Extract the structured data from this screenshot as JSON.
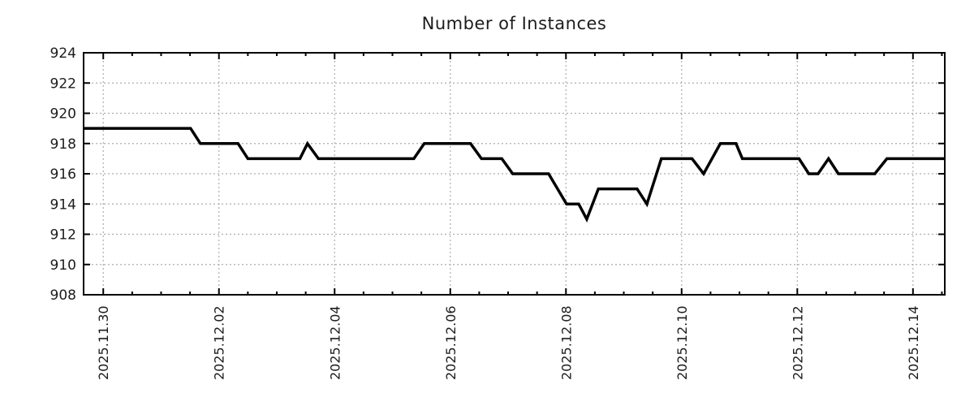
{
  "chart_data": {
    "type": "line",
    "title": "Number of Instances",
    "background": "#ffffff",
    "text_color": "#1c1c1c",
    "border_color": "#000000",
    "grid": {
      "show": true,
      "color": "#adadad",
      "dash": "2 3"
    },
    "legend": "none",
    "x_axis": {
      "unit": "days since 2025.11.30",
      "range": [
        -0.34,
        14.55
      ],
      "major_tick_positions": [
        0,
        2,
        4,
        6,
        8,
        10,
        12,
        14
      ],
      "major_tick_labels": [
        "2025.11.30",
        "2025.12.02",
        "2025.12.04",
        "2025.12.06",
        "2025.12.08",
        "2025.12.10",
        "2025.12.12",
        "2025.12.14"
      ],
      "minor_tick_interval": 0.5,
      "label_rotation_deg": -90
    },
    "y_axis": {
      "range": [
        908,
        924
      ],
      "major_tick_positions": [
        908,
        910,
        912,
        914,
        916,
        918,
        920,
        922,
        924
      ],
      "major_tick_labels": [
        "908",
        "910",
        "912",
        "914",
        "916",
        "918",
        "920",
        "922",
        "924"
      ]
    },
    "series": [
      {
        "name": "instances",
        "color": "#000000",
        "line_width": 3.5,
        "points": [
          [
            -0.34,
            919
          ],
          [
            1.51,
            919
          ],
          [
            1.68,
            918
          ],
          [
            2.33,
            918
          ],
          [
            2.5,
            917
          ],
          [
            3.4,
            917
          ],
          [
            3.53,
            918
          ],
          [
            3.72,
            917
          ],
          [
            5.37,
            917
          ],
          [
            5.55,
            918
          ],
          [
            6.35,
            918
          ],
          [
            6.54,
            917
          ],
          [
            6.89,
            917
          ],
          [
            7.08,
            916
          ],
          [
            7.7,
            916
          ],
          [
            8.01,
            914
          ],
          [
            8.22,
            914
          ],
          [
            8.36,
            913
          ],
          [
            8.56,
            915
          ],
          [
            9.23,
            915
          ],
          [
            9.4,
            914
          ],
          [
            9.65,
            917
          ],
          [
            10.18,
            917
          ],
          [
            10.38,
            916
          ],
          [
            10.67,
            918
          ],
          [
            10.94,
            918
          ],
          [
            11.05,
            917
          ],
          [
            12.03,
            917
          ],
          [
            12.2,
            916
          ],
          [
            12.36,
            916
          ],
          [
            12.54,
            917
          ],
          [
            12.71,
            916
          ],
          [
            13.34,
            916
          ],
          [
            13.55,
            917
          ],
          [
            14.55,
            917
          ]
        ]
      }
    ]
  }
}
